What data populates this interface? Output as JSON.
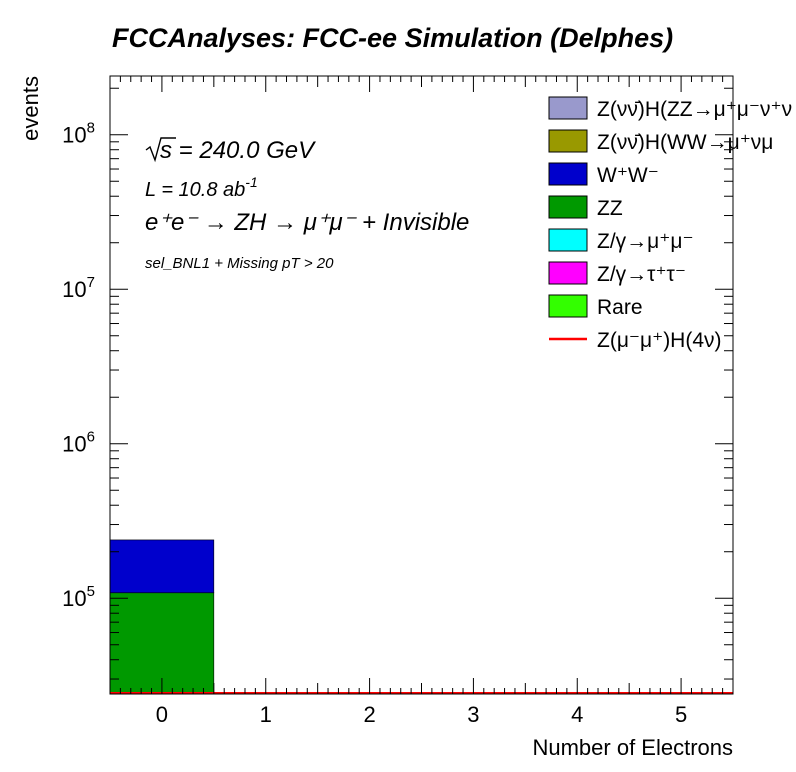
{
  "chart_data": {
    "type": "bar",
    "title": "FCCAnalyses: FCC-ee Simulation (Delphes)",
    "xlabel": "Number of Electrons",
    "ylabel": "events",
    "x_tick_labels": [
      "0",
      "1",
      "2",
      "3",
      "4",
      "5"
    ],
    "y_tick_labels": [
      {
        "value": 100000,
        "base": "10",
        "exp": "5"
      },
      {
        "value": 1000000,
        "base": "10",
        "exp": "6"
      },
      {
        "value": 10000000,
        "base": "10",
        "exp": "7"
      },
      {
        "value": 100000000,
        "base": "10",
        "exp": "8"
      }
    ],
    "xlim": [
      -0.5,
      5.5
    ],
    "ylim": [
      24000,
      240000000
    ],
    "yscale": "log",
    "grid": false,
    "stacked": true,
    "bin_edges": [
      -0.5,
      0.5,
      1.5,
      2.5,
      3.5,
      4.5,
      5.5
    ],
    "annotations": {
      "sqrt_s": {
        "sym": "s",
        "rest": " = 240.0 GeV"
      },
      "lumi": {
        "base": "L = 10.8 ab",
        "exp": "-1"
      },
      "process": "e⁺e⁻ → ZH → μ⁺μ⁻ + Invisible",
      "selection": "sel_BNL1 + Missing pT > 20"
    },
    "legend_position": "top-right",
    "series": [
      {
        "name": "Z(νν̄)H(ZZ→μ⁺μ⁻ν⁺ν",
        "color": "#9999cc",
        "values": [
          0,
          0,
          0,
          0,
          0,
          0
        ]
      },
      {
        "name": "Z(νν̄)H(WW→μ⁺νμ",
        "color": "#999900",
        "values": [
          0,
          0,
          0,
          0,
          0,
          0
        ]
      },
      {
        "name": "W⁺W⁻",
        "color": "#0000cc",
        "values": [
          130000,
          0,
          0,
          0,
          0,
          0
        ]
      },
      {
        "name": "ZZ",
        "color": "#009900",
        "values": [
          108000,
          0,
          0,
          0,
          0,
          0
        ]
      },
      {
        "name": "Z/γ→μ⁺μ⁻",
        "color": "#00ffff",
        "values": [
          0,
          0,
          0,
          0,
          0,
          0
        ]
      },
      {
        "name": "Z/γ→τ⁺τ⁻",
        "color": "#ff00ff",
        "values": [
          500,
          0,
          0,
          0,
          0,
          0
        ]
      },
      {
        "name": "Rare",
        "color": "#33ff00",
        "values": [
          0,
          0,
          0,
          0,
          0,
          0
        ]
      }
    ],
    "signal": {
      "name": "Z(μ⁻μ⁺)H(4ν)",
      "color": "#ff0000",
      "values": [
        0,
        0,
        0,
        0,
        0,
        0
      ]
    }
  }
}
